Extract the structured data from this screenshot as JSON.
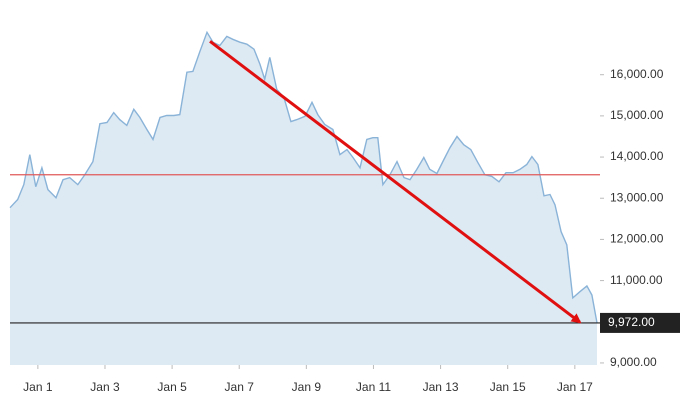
{
  "chart_data": {
    "type": "area",
    "x": [
      0.17,
      0.4,
      0.58,
      0.76,
      0.94,
      1.12,
      1.3,
      1.54,
      1.75,
      1.95,
      2.19,
      2.4,
      2.64,
      2.85,
      3.06,
      3.26,
      3.44,
      3.65,
      3.86,
      4.04,
      4.25,
      4.43,
      4.64,
      4.84,
      5.05,
      5.23,
      5.44,
      5.62,
      5.83,
      6.04,
      6.22,
      6.42,
      6.63,
      6.81,
      7.02,
      7.23,
      7.44,
      7.62,
      7.76,
      7.91,
      8.12,
      8.33,
      8.54,
      8.72,
      8.96,
      9.17,
      9.34,
      9.55,
      9.79,
      10.0,
      10.21,
      10.39,
      10.6,
      10.8,
      10.98,
      11.13,
      11.28,
      11.49,
      11.7,
      11.91,
      12.09,
      12.29,
      12.5,
      12.68,
      12.89,
      13.1,
      13.28,
      13.49,
      13.69,
      13.9,
      14.11,
      14.32,
      14.53,
      14.74,
      14.95,
      15.16,
      15.36,
      15.57,
      15.72,
      15.9,
      16.08,
      16.26,
      16.41,
      16.59,
      16.76,
      16.94,
      17.15,
      17.36,
      17.51,
      17.66
    ],
    "series": [
      {
        "color": "#8ab3d8",
        "fill": "#dde9f3",
        "values": [
          12770,
          12970,
          13330,
          14060,
          13280,
          13740,
          13210,
          13010,
          13450,
          13500,
          13330,
          13570,
          13890,
          14810,
          14840,
          15080,
          14910,
          14770,
          15160,
          14960,
          14670,
          14430,
          14960,
          15010,
          15010,
          15030,
          16060,
          16080,
          16570,
          17030,
          16790,
          16710,
          16930,
          16860,
          16790,
          16740,
          16620,
          16250,
          15890,
          16420,
          15640,
          15450,
          14860,
          14910,
          14990,
          15330,
          15030,
          14790,
          14670,
          14060,
          14180,
          13990,
          13740,
          14430,
          14470,
          14470,
          13330,
          13570,
          13890,
          13500,
          13450,
          13700,
          13990,
          13700,
          13600,
          13940,
          14230,
          14500,
          14300,
          14180,
          13870,
          13570,
          13530,
          13400,
          13620,
          13620,
          13700,
          13820,
          14010,
          13820,
          13060,
          13090,
          12840,
          12190,
          11870,
          10580,
          10730,
          10870,
          10650,
          9972
        ]
      }
    ],
    "xlim": [
      0.17,
      17.75
    ],
    "xticks": [
      {
        "value": 1,
        "label": "Jan 1"
      },
      {
        "value": 3,
        "label": "Jan 3"
      },
      {
        "value": 5,
        "label": "Jan 5"
      },
      {
        "value": 7,
        "label": "Jan 7"
      },
      {
        "value": 9,
        "label": "Jan 9"
      },
      {
        "value": 11,
        "label": "Jan 11"
      },
      {
        "value": 13,
        "label": "Jan 13"
      },
      {
        "value": 15,
        "label": "Jan 15"
      },
      {
        "value": 17,
        "label": "Jan 17"
      }
    ],
    "ylim": [
      8950,
      17450
    ],
    "yticks": [
      {
        "value": 9000,
        "label": "9,000.00"
      },
      {
        "value": 11000,
        "label": "11,000.00"
      },
      {
        "value": 12000,
        "label": "12,000.00"
      },
      {
        "value": 13000,
        "label": "13,000.00"
      },
      {
        "value": 14000,
        "label": "14,000.00"
      },
      {
        "value": 15000,
        "label": "15,000.00"
      },
      {
        "value": 16000,
        "label": "16,000.00"
      }
    ],
    "reference_line": {
      "value": 13570,
      "color": "#e05a5a"
    },
    "last_marker": {
      "value": 9972,
      "label": "9,972.00",
      "color": "#222222"
    },
    "arrow": {
      "x": [
        6.13,
        17.15
      ],
      "y": [
        16810,
        9990
      ],
      "color": "#e01010"
    },
    "grid": false
  }
}
